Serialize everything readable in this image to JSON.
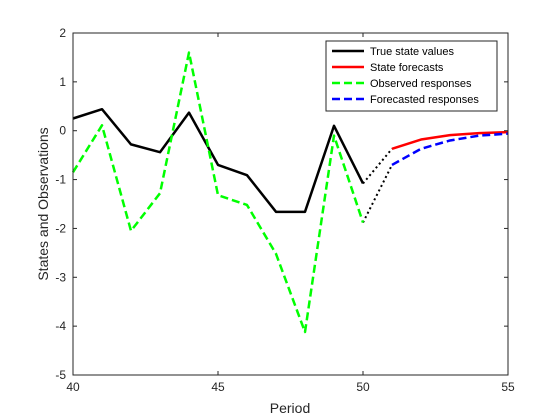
{
  "chart_data": {
    "type": "line",
    "title": "",
    "xlabel": "Period",
    "ylabel": "States and Observations",
    "xlim": [
      40,
      55
    ],
    "ylim": [
      -5,
      2
    ],
    "xticks": [
      "40",
      "45",
      "50",
      "55"
    ],
    "yticks": [
      "-5",
      "-4",
      "-3",
      "-2",
      "-1",
      "0",
      "1",
      "2"
    ],
    "grid": false,
    "legend_position": "top-right",
    "series": [
      {
        "name": "True state values",
        "color": "#000000",
        "style": "solid",
        "x": [
          40,
          41,
          42,
          43,
          44,
          45,
          46,
          47,
          48,
          49,
          50
        ],
        "y": [
          0.25,
          0.44,
          -0.28,
          -0.44,
          0.37,
          -0.7,
          -0.91,
          -1.66,
          -1.66,
          0.1,
          -1.08
        ]
      },
      {
        "name": "State forecasts",
        "color": "#ff0000",
        "style": "solid",
        "x": [
          51,
          52,
          53,
          54,
          55
        ],
        "y": [
          -0.37,
          -0.18,
          -0.09,
          -0.05,
          -0.03
        ]
      },
      {
        "name": "Observed responses",
        "color": "#00ff00",
        "style": "dashed",
        "x": [
          40,
          41,
          42,
          43,
          44,
          45,
          46,
          47,
          48,
          49,
          50
        ],
        "y": [
          -0.85,
          0.11,
          -2.05,
          -1.28,
          1.6,
          -1.32,
          -1.52,
          -2.52,
          -4.12,
          -0.1,
          -1.88
        ]
      },
      {
        "name": "Forecasted responses",
        "color": "#0000ff",
        "style": "dashed",
        "x": [
          51,
          52,
          53,
          54,
          55
        ],
        "y": [
          -0.7,
          -0.37,
          -0.2,
          -0.1,
          -0.06
        ]
      }
    ],
    "connectors": [
      {
        "style": "dotted",
        "color": "#000000",
        "x": [
          50,
          51
        ],
        "y": [
          -1.08,
          -0.37
        ]
      },
      {
        "style": "dotted",
        "color": "#000000",
        "x": [
          50,
          51
        ],
        "y": [
          -1.88,
          -0.7
        ]
      }
    ]
  }
}
